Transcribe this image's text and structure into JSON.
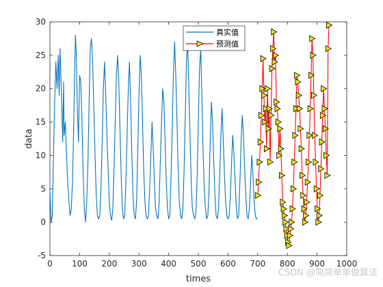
{
  "chart_data": {
    "type": "line",
    "xlabel": "times",
    "ylabel": "data",
    "xlim": [
      0,
      1000
    ],
    "ylim": [
      -5,
      30
    ],
    "xticks": [
      0,
      100,
      200,
      300,
      400,
      500,
      600,
      700,
      800,
      900,
      1000
    ],
    "yticks": [
      -5,
      0,
      5,
      10,
      15,
      20,
      25,
      30
    ],
    "grid": false,
    "legend_position": "top-center",
    "series": [
      {
        "name": "真实值",
        "color": "#0072bd",
        "marker": "none",
        "x": [
          0,
          4,
          8,
          12,
          16,
          20,
          24,
          28,
          31,
          34,
          37,
          40,
          43,
          46,
          48,
          52,
          56,
          60,
          64,
          68,
          72,
          76,
          80,
          83,
          86,
          89,
          92,
          96,
          100,
          104,
          108,
          112,
          116,
          120,
          124,
          128,
          132,
          136,
          140,
          144,
          148,
          152,
          156,
          160,
          164,
          168,
          172,
          176,
          180,
          184,
          188,
          192,
          196,
          200,
          204,
          208,
          212,
          216,
          220,
          224,
          228,
          232,
          236,
          240,
          244,
          248,
          252,
          256,
          260,
          264,
          268,
          272,
          276,
          280,
          284,
          288,
          292,
          296,
          300,
          304,
          308,
          312,
          316,
          320,
          324,
          328,
          332,
          336,
          340,
          344,
          348,
          352,
          356,
          360,
          364,
          368,
          372,
          376,
          380,
          384,
          388,
          392,
          396,
          400,
          404,
          408,
          412,
          416,
          420,
          424,
          428,
          432,
          436,
          440,
          444,
          448,
          452,
          456,
          460,
          464,
          468,
          472,
          476,
          480,
          484,
          488,
          492,
          496,
          500,
          504,
          508,
          512,
          516,
          520,
          524,
          528,
          532,
          536,
          540,
          544,
          548,
          552,
          556,
          560,
          564,
          568,
          572,
          576,
          580,
          584,
          588,
          592,
          596,
          600,
          604,
          608,
          612,
          616,
          620,
          624,
          628,
          632,
          636,
          640,
          644,
          648,
          652,
          656,
          660,
          664,
          668,
          672,
          676,
          680,
          684,
          688,
          692,
          696,
          700
        ],
        "y": [
          5,
          0,
          1,
          10,
          18,
          24,
          20,
          25,
          19,
          26,
          22,
          17,
          12,
          21,
          13,
          15,
          10,
          6,
          3,
          1,
          2,
          6,
          14,
          22,
          28,
          25,
          18,
          12,
          22,
          21,
          15,
          7,
          2,
          0,
          3,
          9,
          18,
          26,
          27.5,
          24,
          17,
          10,
          4,
          1,
          0.5,
          1,
          5,
          12,
          20,
          24,
          19,
          13,
          8,
          3,
          1,
          0.3,
          2,
          8,
          15,
          22,
          25,
          21,
          14,
          7,
          2,
          0.5,
          1,
          6,
          13,
          20,
          24,
          18,
          10,
          4,
          1,
          0.5,
          3,
          11,
          19,
          25,
          22,
          15,
          8,
          3,
          1,
          0.5,
          1,
          5,
          10,
          15,
          11,
          6,
          2,
          1,
          0.5,
          3,
          9,
          15,
          20,
          18,
          12,
          6,
          2,
          0.5,
          1,
          7,
          14,
          22,
          27,
          22,
          15,
          8,
          3,
          1,
          0.5,
          2,
          8,
          16,
          24,
          27,
          20,
          13,
          6,
          2,
          1,
          0.5,
          1.5,
          7,
          15,
          23,
          26,
          19,
          11,
          5,
          2,
          0.5,
          1,
          5,
          12,
          18,
          15,
          9,
          4,
          1,
          0.5,
          2,
          7,
          13,
          17,
          12,
          7,
          3,
          1,
          0.5,
          1,
          4,
          9,
          13,
          10,
          6,
          2,
          0.5,
          1,
          6,
          12,
          16,
          13,
          8,
          4,
          1,
          0.5,
          2,
          6,
          10,
          7,
          3,
          1,
          0.5,
          0.5
        ]
      },
      {
        "name": "预测值",
        "color": "#ff0000",
        "marker": "triangle-right",
        "marker_fill": "#e6e619",
        "x": [
          700,
          703,
          706,
          709,
          712,
          715,
          718,
          721,
          724,
          727,
          730,
          733,
          736,
          739,
          742,
          745,
          748,
          751,
          754,
          757,
          760,
          763,
          766,
          769,
          772,
          775,
          778,
          781,
          784,
          787,
          790,
          793,
          796,
          799,
          802,
          805,
          808,
          811,
          814,
          817,
          820,
          823,
          826,
          829,
          832,
          835,
          838,
          841,
          844,
          847,
          850,
          853,
          856,
          859,
          862,
          865,
          868,
          871,
          874,
          877,
          880,
          883,
          886,
          889,
          892,
          895,
          898,
          901,
          904,
          907,
          910,
          913,
          916,
          919,
          922,
          925,
          928,
          931,
          934,
          937,
          940
        ],
        "y": [
          4,
          6,
          9,
          12,
          16,
          20,
          24.5,
          19,
          15,
          17,
          11,
          20,
          14,
          17,
          9,
          16,
          23,
          26,
          28.5,
          24,
          25,
          18,
          17,
          15,
          10,
          14,
          11,
          7,
          3,
          2,
          1,
          0,
          -1,
          -2,
          -3,
          -3.5,
          -2,
          -1,
          0,
          2,
          5,
          9,
          13,
          17,
          22,
          21,
          19,
          17,
          14,
          11,
          7,
          4,
          2,
          0,
          1,
          3,
          6,
          9,
          13,
          17,
          22,
          27.5,
          25,
          19,
          13,
          9,
          5,
          2,
          0,
          1,
          4,
          8,
          12,
          16,
          20,
          17,
          14,
          10,
          7,
          26,
          29.5
        ]
      }
    ]
  },
  "watermark": "CSDN @简简单单做算法"
}
